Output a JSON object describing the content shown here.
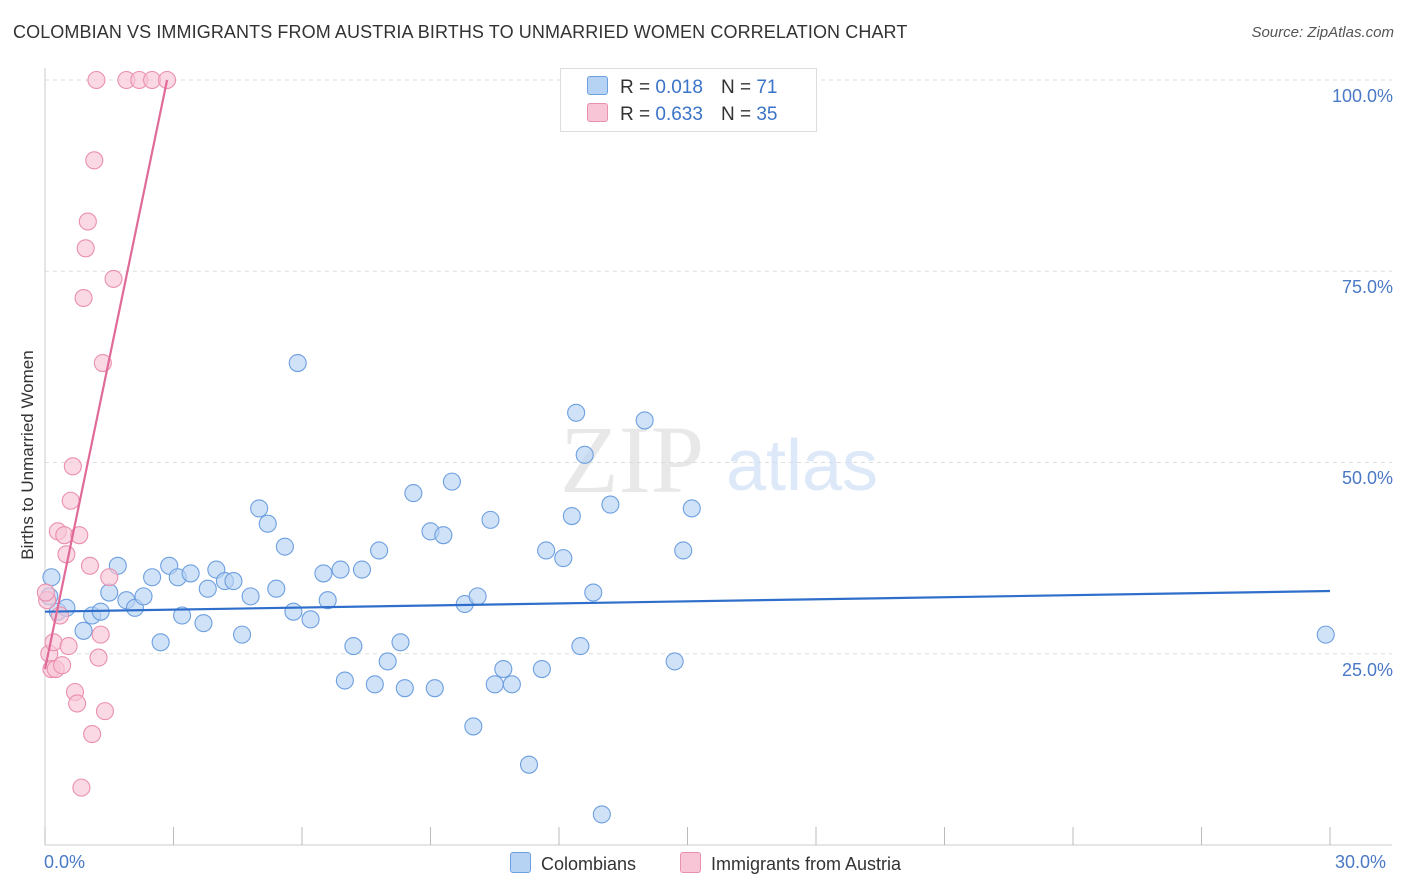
{
  "title": "COLOMBIAN VS IMMIGRANTS FROM AUSTRIA BIRTHS TO UNMARRIED WOMEN CORRELATION CHART",
  "source": "Source: ZipAtlas.com",
  "watermark": {
    "zip": "ZIP",
    "atlas": "atlas"
  },
  "legend": {
    "r_label": "R =",
    "n_label": "N =",
    "rows": [
      {
        "name": "Colombians",
        "r": "0.018",
        "n": "71",
        "fill": "#b7d3f3",
        "stroke": "#6d9fe0"
      },
      {
        "name": "Immigrants from Austria",
        "r": "0.633",
        "n": "35",
        "fill": "#f8c5d6",
        "stroke": "#ea8fae"
      }
    ]
  },
  "chart_data": {
    "type": "scatter",
    "title": "COLOMBIAN VS IMMIGRANTS FROM AUSTRIA BIRTHS TO UNMARRIED WOMEN CORRELATION CHART",
    "xlabel": "",
    "ylabel": "Births to Unmarried Women",
    "xlim": [
      0,
      30
    ],
    "ylim": [
      0,
      100
    ],
    "x_tick_labels": [
      "0.0%",
      "30.0%"
    ],
    "y_tick_labels": [
      "25.0%",
      "50.0%",
      "75.0%",
      "100.0%"
    ],
    "y_ticks": [
      25,
      50,
      75,
      100
    ],
    "x_ticks": [
      0,
      3,
      6,
      9,
      12,
      15,
      18,
      21,
      24,
      27,
      30
    ],
    "grid": true,
    "series": [
      {
        "name": "Colombians",
        "color": "#6d9fe0",
        "fill": "#b7d3f3",
        "trend": {
          "x": [
            0,
            30
          ],
          "y": [
            30.5,
            33.2
          ]
        },
        "points": [
          [
            0.1,
            32.5
          ],
          [
            0.3,
            30.5
          ],
          [
            0.5,
            31.0
          ],
          [
            0.9,
            28.0
          ],
          [
            1.1,
            30.0
          ],
          [
            1.3,
            30.5
          ],
          [
            1.5,
            33.0
          ],
          [
            1.7,
            36.5
          ],
          [
            1.9,
            32.0
          ],
          [
            2.1,
            31.0
          ],
          [
            2.3,
            32.5
          ],
          [
            2.5,
            35.0
          ],
          [
            2.7,
            26.5
          ],
          [
            2.9,
            36.5
          ],
          [
            3.1,
            35.0
          ],
          [
            3.2,
            30.0
          ],
          [
            3.4,
            35.5
          ],
          [
            3.7,
            29.0
          ],
          [
            3.8,
            33.5
          ],
          [
            4.0,
            36.0
          ],
          [
            4.2,
            34.5
          ],
          [
            4.4,
            34.5
          ],
          [
            4.6,
            27.5
          ],
          [
            4.8,
            32.5
          ],
          [
            5.0,
            44.0
          ],
          [
            5.2,
            42.0
          ],
          [
            5.4,
            33.5
          ],
          [
            5.6,
            39.0
          ],
          [
            5.8,
            30.5
          ],
          [
            5.9,
            63.0
          ],
          [
            6.2,
            29.5
          ],
          [
            6.5,
            35.5
          ],
          [
            6.6,
            32.0
          ],
          [
            6.9,
            36.0
          ],
          [
            7.0,
            21.5
          ],
          [
            7.2,
            26.0
          ],
          [
            7.4,
            36.0
          ],
          [
            7.7,
            21.0
          ],
          [
            7.8,
            38.5
          ],
          [
            8.0,
            24.0
          ],
          [
            8.3,
            26.5
          ],
          [
            8.4,
            20.5
          ],
          [
            8.6,
            46.0
          ],
          [
            9.0,
            41.0
          ],
          [
            9.1,
            20.5
          ],
          [
            9.3,
            40.5
          ],
          [
            9.5,
            47.5
          ],
          [
            9.8,
            31.5
          ],
          [
            10.0,
            15.5
          ],
          [
            10.1,
            32.5
          ],
          [
            10.4,
            42.5
          ],
          [
            10.5,
            21.0
          ],
          [
            10.7,
            23.0
          ],
          [
            10.9,
            21.0
          ],
          [
            11.3,
            10.5
          ],
          [
            11.6,
            23.0
          ],
          [
            11.7,
            38.5
          ],
          [
            12.1,
            37.5
          ],
          [
            12.3,
            43.0
          ],
          [
            12.4,
            56.5
          ],
          [
            12.5,
            26.0
          ],
          [
            12.6,
            51.0
          ],
          [
            12.8,
            33.0
          ],
          [
            13.0,
            4.0
          ],
          [
            13.2,
            44.5
          ],
          [
            14.0,
            55.5
          ],
          [
            14.7,
            24.0
          ],
          [
            14.9,
            38.5
          ],
          [
            15.1,
            44.0
          ],
          [
            29.9,
            27.5
          ],
          [
            0.15,
            35.0
          ]
        ]
      },
      {
        "name": "Immigrants from Austria",
        "color": "#ea8fae",
        "fill": "#f8c5d6",
        "trend": {
          "x": [
            0,
            2.85
          ],
          "y": [
            23.0,
            100.0
          ]
        },
        "points": [
          [
            0.05,
            32.0
          ],
          [
            0.1,
            25.0
          ],
          [
            0.15,
            23.0
          ],
          [
            0.2,
            26.5
          ],
          [
            0.25,
            23.0
          ],
          [
            0.3,
            41.0
          ],
          [
            0.35,
            30.0
          ],
          [
            0.4,
            23.5
          ],
          [
            0.45,
            40.5
          ],
          [
            0.5,
            38.0
          ],
          [
            0.55,
            26.0
          ],
          [
            0.6,
            45.0
          ],
          [
            0.65,
            49.5
          ],
          [
            0.7,
            20.0
          ],
          [
            0.75,
            18.5
          ],
          [
            0.8,
            40.5
          ],
          [
            0.85,
            7.5
          ],
          [
            0.9,
            71.5
          ],
          [
            0.95,
            78.0
          ],
          [
            1.0,
            81.5
          ],
          [
            1.05,
            36.5
          ],
          [
            1.1,
            14.5
          ],
          [
            1.15,
            89.5
          ],
          [
            1.2,
            100.0
          ],
          [
            1.25,
            24.5
          ],
          [
            1.3,
            27.5
          ],
          [
            1.35,
            63.0
          ],
          [
            1.4,
            17.5
          ],
          [
            1.5,
            35.0
          ],
          [
            1.6,
            74.0
          ],
          [
            1.9,
            100.0
          ],
          [
            2.2,
            100.0
          ],
          [
            2.5,
            100.0
          ],
          [
            2.85,
            100.0
          ],
          [
            0.02,
            33.0
          ]
        ]
      }
    ]
  }
}
